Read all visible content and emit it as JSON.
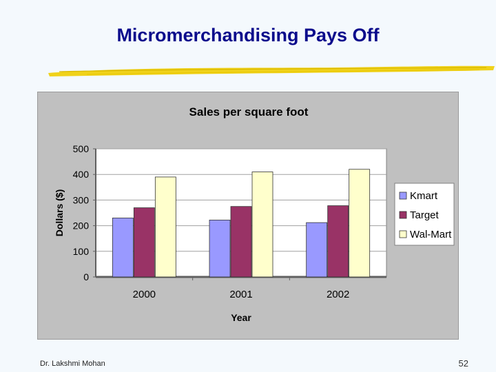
{
  "slide": {
    "title": "Micromerchandising Pays Off",
    "author": "Dr. Lakshmi Mohan",
    "page_number": "52"
  },
  "colors": {
    "title": "#0b0b8c",
    "underline": "#f0d21a",
    "chart_background": "#c0c0c0",
    "plot_background": "#ffffff"
  },
  "chart_data": {
    "type": "bar",
    "title": "Sales per square foot",
    "xlabel": "Year",
    "ylabel": "Dollars ($)",
    "categories": [
      "2000",
      "2001",
      "2002"
    ],
    "series": [
      {
        "name": "Kmart",
        "color": "#9999ff",
        "values": [
          230,
          222,
          212
        ]
      },
      {
        "name": "Target",
        "color": "#993366",
        "values": [
          270,
          275,
          278
        ]
      },
      {
        "name": "Wal-Mart",
        "color": "#ffffcc",
        "values": [
          390,
          410,
          420
        ]
      }
    ],
    "ylim": [
      0,
      500
    ],
    "yticks": [
      0,
      100,
      200,
      300,
      400,
      500
    ],
    "grid": true,
    "legend_position": "right"
  }
}
